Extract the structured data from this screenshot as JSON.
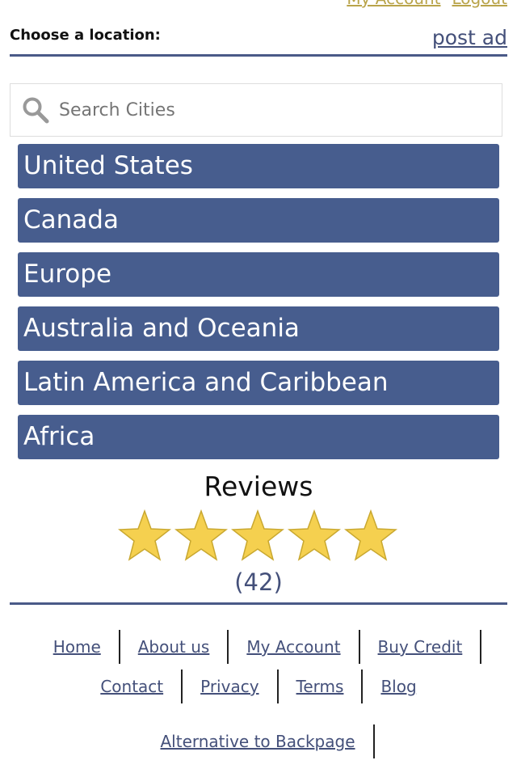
{
  "header": {
    "top_links": [
      "My Account",
      "Logout"
    ],
    "choose_label": "Choose a location:",
    "post_ad": "post ad"
  },
  "search": {
    "placeholder": "Search Cities"
  },
  "regions": [
    "United States",
    "Canada",
    "Europe",
    "Australia and Oceania",
    "Latin America and Caribbean",
    "Africa"
  ],
  "reviews": {
    "title": "Reviews",
    "rating": 5,
    "max": 5,
    "count": "(42)",
    "star_color": "#f5d04f"
  },
  "footer": {
    "row1": [
      "Home",
      "About us",
      "My Account",
      "Buy Credit"
    ],
    "row2": [
      "Contact",
      "Privacy",
      "Terms",
      "Blog"
    ],
    "row3": [
      "Alternative to Backpage"
    ]
  }
}
